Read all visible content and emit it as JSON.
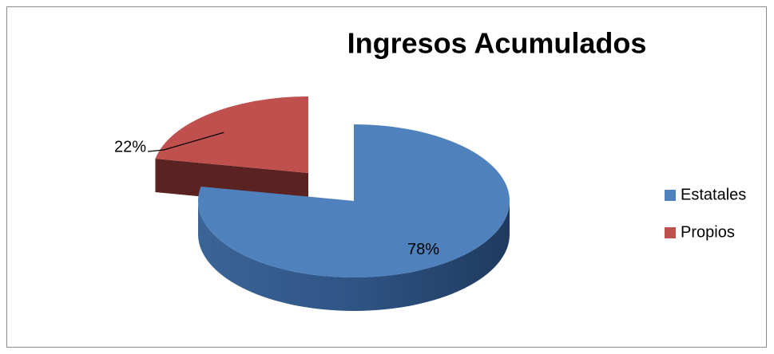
{
  "chart_data": {
    "type": "pie",
    "title": "Ingresos Acumulados",
    "categories": [
      "Estatales",
      "Propios"
    ],
    "values": [
      78,
      22
    ],
    "value_labels": [
      "78%",
      "22%"
    ],
    "colors": [
      "#4f81bd",
      "#c0504d"
    ],
    "legend": "right"
  }
}
